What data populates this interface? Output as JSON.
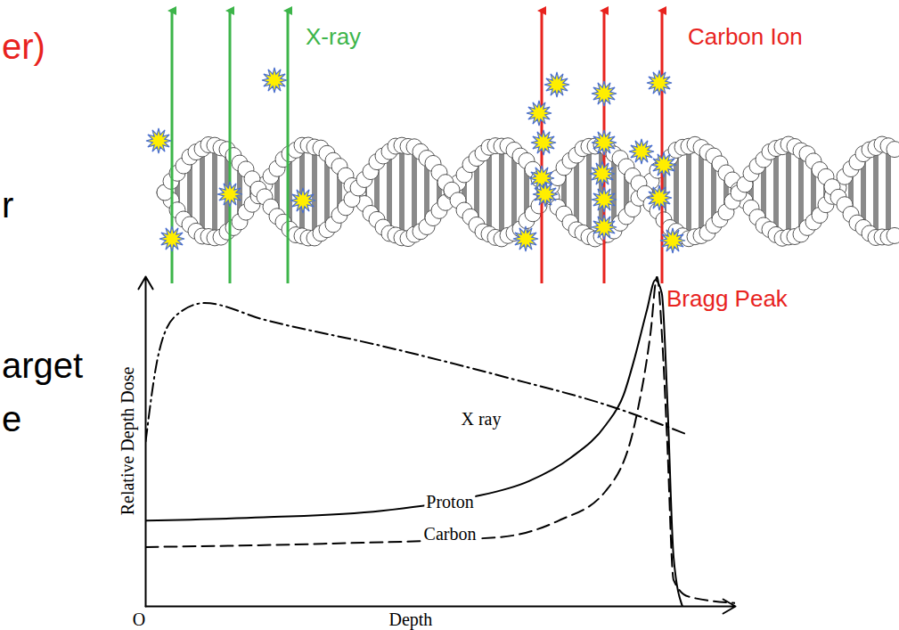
{
  "slide_text": [
    {
      "text": "er)",
      "color": "#e8231e"
    },
    {
      "text": "r",
      "color": "#000000"
    },
    {
      "text": "arget",
      "color": "#000000"
    },
    {
      "text": "e",
      "color": "#000000"
    }
  ],
  "illustration": {
    "beams": [
      {
        "label": "X-ray",
        "color": "#3db54a"
      },
      {
        "label": "Carbon Ion",
        "color": "#e8231e"
      }
    ]
  },
  "chart_data": {
    "type": "line",
    "xlabel": "Depth",
    "ylabel": "Relative Depth Dose",
    "origin_label": "O",
    "xlim": [
      0,
      100
    ],
    "ylim": [
      0,
      100
    ],
    "xticks": [],
    "yticks": [],
    "tick_labels": false,
    "series": [
      {
        "name": "X ray",
        "color": "#000000",
        "line_style": "dashdot",
        "x": [
          0,
          2,
          5,
          10,
          20,
          40,
          60,
          80,
          92
        ],
        "values": [
          50,
          75,
          88,
          92,
          87,
          79,
          70,
          60,
          52
        ]
      },
      {
        "name": "Proton",
        "color": "#000000",
        "line_style": "solid",
        "x": [
          0,
          20,
          40,
          55,
          65,
          72,
          78,
          81,
          83,
          85,
          86.4,
          87.5,
          88.5,
          89.5,
          91
        ],
        "values": [
          26,
          27,
          29,
          33,
          38,
          45,
          55,
          64,
          76,
          90,
          99,
          95,
          60,
          15,
          0
        ]
      },
      {
        "name": "Carbon",
        "color": "#000000",
        "line_style": "dashed",
        "x": [
          0,
          30,
          60,
          70,
          78,
          83,
          85.6,
          86.7,
          87.6,
          88.4,
          89.5,
          92,
          100
        ],
        "values": [
          18,
          19,
          21,
          26,
          35,
          56,
          83,
          100,
          80,
          51,
          8,
          3,
          1
        ]
      }
    ],
    "annotations": [
      {
        "text": "Bragg Peak",
        "color": "#e8231e"
      }
    ]
  }
}
